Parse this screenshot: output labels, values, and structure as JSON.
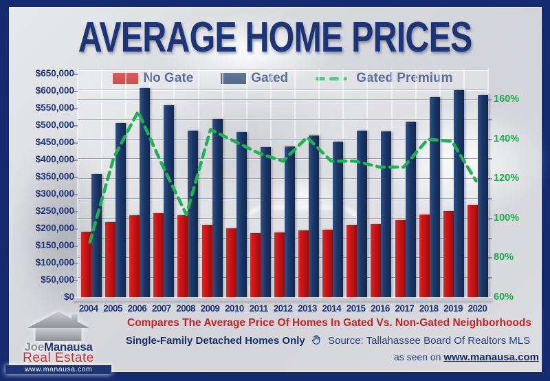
{
  "colors": {
    "frame_navy": "#142a6e",
    "panel_gray": "#d8d9dd",
    "title_navy": "#1d3576",
    "bar_red": "#c51414",
    "bar_navy": "#1c3766",
    "line_green": "#1fb254",
    "axis_green": "#1fa94e",
    "subtitle_red": "#c62424"
  },
  "title": "AVERAGE HOME PRICES",
  "chart_data": {
    "type": "bar",
    "title": "AVERAGE HOME PRICES",
    "categories": [
      "2004",
      "2005",
      "2006",
      "2007",
      "2008",
      "2009",
      "2010",
      "2011",
      "2012",
      "2013",
      "2014",
      "2015",
      "2016",
      "2017",
      "2018",
      "2019",
      "2020"
    ],
    "series": [
      {
        "name": "No Gate",
        "type": "bar",
        "axis": "left",
        "color": "#c51414",
        "values": [
          192000,
          220000,
          240000,
          247000,
          240000,
          212000,
          202000,
          188000,
          191000,
          196000,
          199000,
          213000,
          214000,
          227000,
          243000,
          253000,
          270000
        ]
      },
      {
        "name": "Gated",
        "type": "bar",
        "axis": "left",
        "color": "#1c3766",
        "values": [
          360000,
          508000,
          610000,
          560000,
          486000,
          520000,
          482000,
          438000,
          440000,
          473000,
          455000,
          487000,
          484000,
          513000,
          584000,
          604000,
          590000
        ]
      },
      {
        "name": "Gated Premium",
        "type": "line",
        "axis": "right",
        "color": "#1fb254",
        "unit": "%",
        "values": [
          88,
          131,
          154,
          127,
          102,
          145,
          139,
          133,
          129,
          141,
          129,
          129,
          126,
          126,
          140,
          139,
          119
        ]
      }
    ],
    "left_axis": {
      "min": 0,
      "max": 650000,
      "step": 50000,
      "tick_labels": [
        "$650,000",
        "$600,000",
        "$550,000",
        "$500,000",
        "$450,000",
        "$400,000",
        "$350,000",
        "$300,000",
        "$250,000",
        "$200,000",
        "$150,000",
        "$100,000",
        "$50,000",
        "$0"
      ]
    },
    "right_axis": {
      "min": 60,
      "max": 170,
      "label_step": 20,
      "grid_step": 10,
      "tick_labels": [
        "160%",
        "140%",
        "120%",
        "100%",
        "80%",
        "60%"
      ]
    },
    "grid": true,
    "legend_position": "top"
  },
  "footer": {
    "subtitle": "Compares The Average Price Of Homes In Gated Vs. Non-Gated Neighborhoods",
    "homes_only": "Single-Family Detached Homes Only",
    "source": "Source: Tallahassee Board Of Realtors MLS",
    "as_seen_prefix": "as seen on",
    "website": "www.manausa.com"
  },
  "logo": {
    "first": "Joe",
    "last": "Manausa",
    "tagline": "Real Estate",
    "website": "www.manausa.com"
  }
}
